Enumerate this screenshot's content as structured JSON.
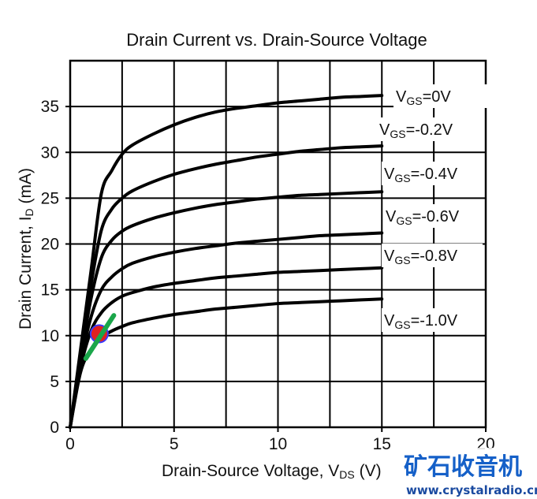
{
  "chart_data": {
    "type": "line",
    "title": "Drain Current vs. Drain-Source Voltage",
    "xlabel": {
      "main": "Drain-Source Voltage, V",
      "sub": "DS",
      "tail": " (V)"
    },
    "ylabel": {
      "main": "Drain Current, I",
      "sub": "D",
      "tail": " (mA)"
    },
    "xlim": [
      0,
      20
    ],
    "ylim": [
      0,
      40
    ],
    "xticks": [
      0,
      5,
      10,
      15,
      20
    ],
    "yticks": [
      0,
      5,
      10,
      15,
      20,
      25,
      30,
      35
    ],
    "grid_x_step": 2.5,
    "grid_y_step": 5,
    "grid": true,
    "x": [
      0,
      0.5,
      1,
      1.5,
      2,
      2.5,
      3,
      4,
      5,
      6,
      7,
      8,
      9,
      10,
      11,
      12,
      13,
      14,
      15
    ],
    "series": [
      {
        "label": {
          "prefix": "V",
          "sub": "GS",
          "value": "=0V"
        },
        "values": [
          0,
          8.5,
          17,
          25.5,
          28,
          29.8,
          30.8,
          32.0,
          33.0,
          33.8,
          34.4,
          34.8,
          35.1,
          35.4,
          35.6,
          35.8,
          36.0,
          36.1,
          36.2
        ]
      },
      {
        "label": {
          "prefix": "V",
          "sub": "GS",
          "value": "=-0.2V"
        },
        "values": [
          0,
          8,
          15.5,
          21.5,
          23.8,
          25.0,
          25.8,
          26.8,
          27.6,
          28.2,
          28.7,
          29.1,
          29.5,
          29.8,
          30.1,
          30.3,
          30.5,
          30.6,
          30.7
        ]
      },
      {
        "label": {
          "prefix": "V",
          "sub": "GS",
          "value": "=-0.4V"
        },
        "values": [
          0,
          7.5,
          14,
          18.5,
          20.4,
          21.4,
          22.0,
          22.8,
          23.4,
          23.9,
          24.3,
          24.6,
          24.9,
          25.1,
          25.3,
          25.4,
          25.5,
          25.6,
          25.7
        ]
      },
      {
        "label": {
          "prefix": "V",
          "sub": "GS",
          "value": "=-0.6V"
        },
        "values": [
          0,
          7,
          12,
          15,
          16.4,
          17.3,
          17.9,
          18.6,
          19.1,
          19.5,
          19.8,
          20.1,
          20.3,
          20.5,
          20.7,
          20.9,
          21.0,
          21.1,
          21.2
        ]
      },
      {
        "label": {
          "prefix": "V",
          "sub": "GS",
          "value": "=-0.8V"
        },
        "values": [
          0,
          6.5,
          10.5,
          12.5,
          13.6,
          14.3,
          14.7,
          15.3,
          15.7,
          16.0,
          16.3,
          16.5,
          16.7,
          16.9,
          17.0,
          17.1,
          17.2,
          17.3,
          17.4
        ]
      },
      {
        "label": {
          "prefix": "V",
          "sub": "GS",
          "value": "=-1.0V"
        },
        "values": [
          0,
          6,
          8.5,
          9.8,
          10.5,
          11.0,
          11.4,
          11.9,
          12.3,
          12.6,
          12.9,
          13.1,
          13.3,
          13.5,
          13.6,
          13.7,
          13.8,
          13.9,
          14.0
        ]
      }
    ],
    "annotations": {
      "marker_point": {
        "x": 1.4,
        "y": 10.2,
        "fill": "#e02020",
        "stroke": "#3a3aff"
      },
      "load_line": {
        "x": [
          0.75,
          2.1
        ],
        "y": [
          7.5,
          12.2
        ],
        "color": "#1aa64a"
      }
    }
  },
  "watermark": {
    "chinese": "矿石收音机",
    "url": "www.crystalradio.cn"
  }
}
